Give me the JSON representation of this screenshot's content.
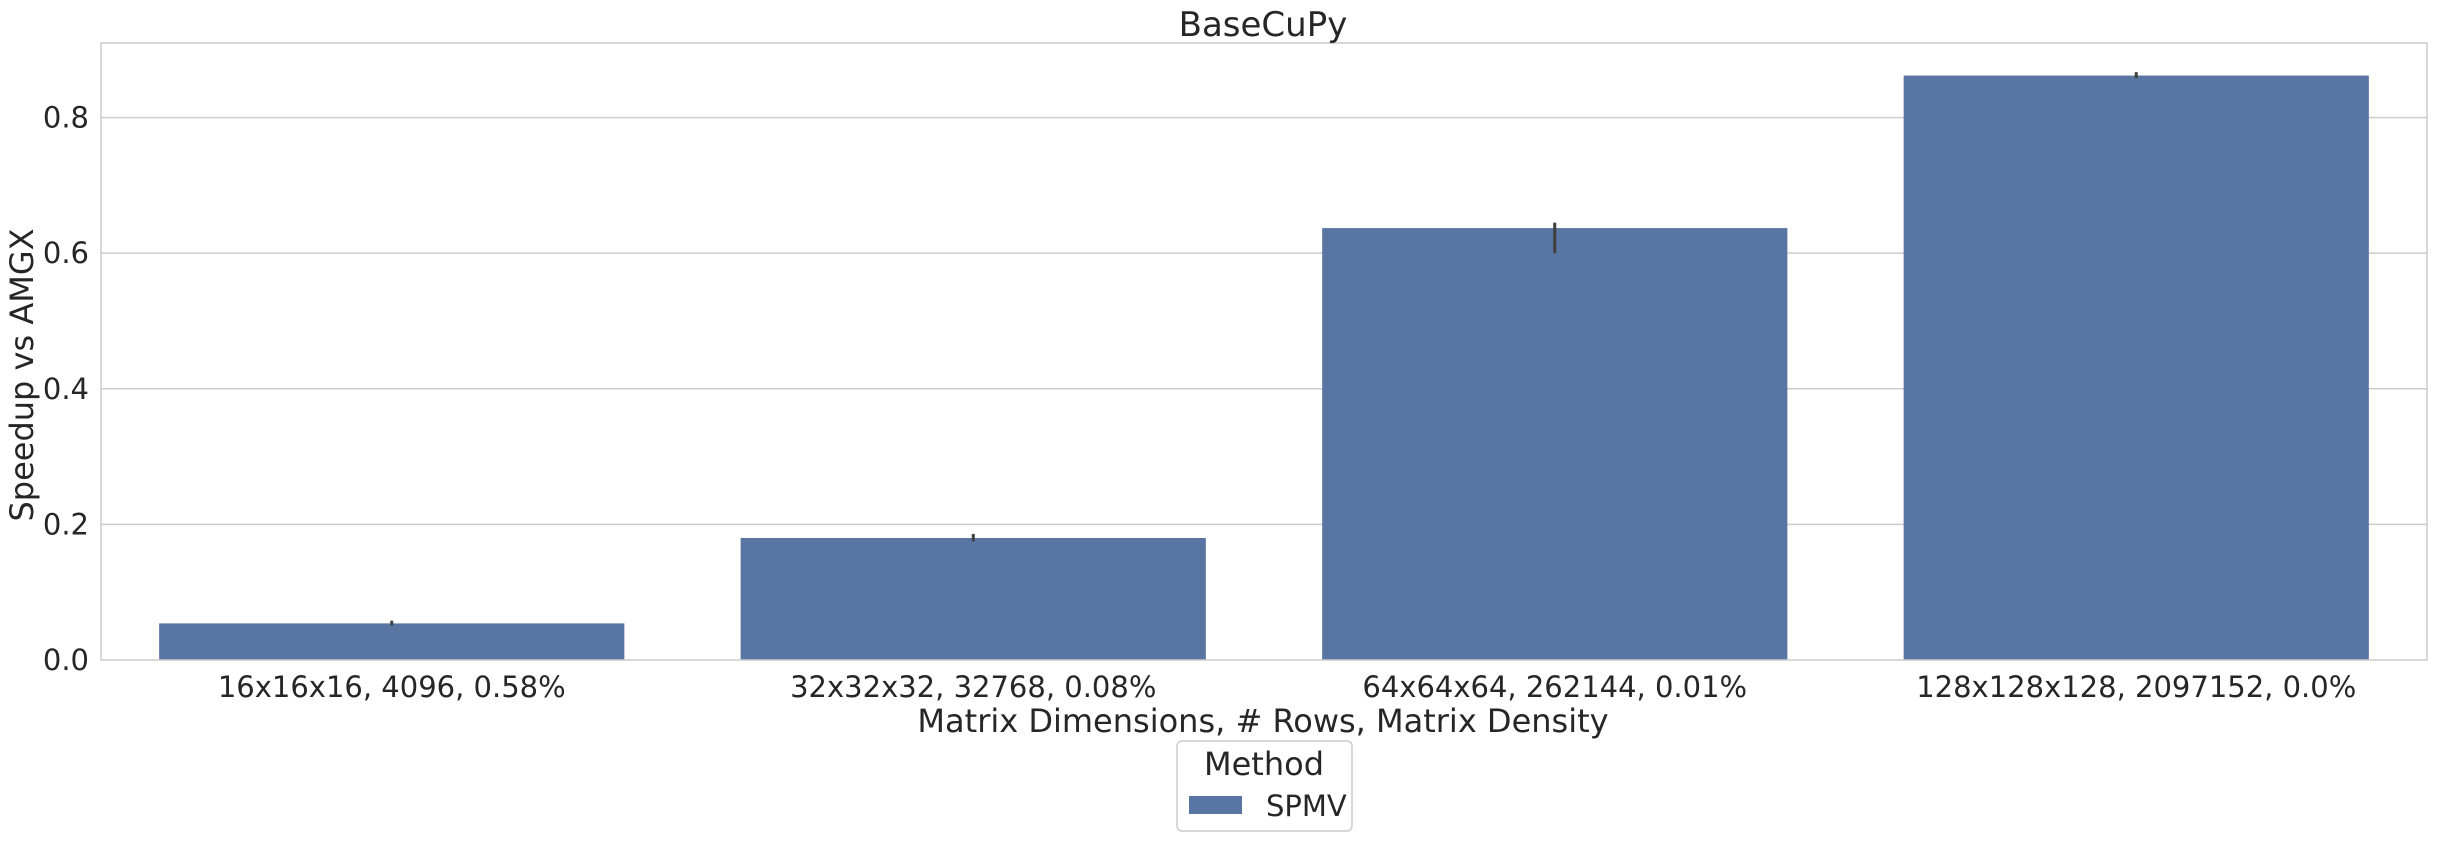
{
  "chart_data": {
    "type": "bar",
    "title": "BaseCuPy",
    "xlabel": "Matrix Dimensions, # Rows, Matrix Density",
    "ylabel": "Speedup vs AMGX",
    "categories": [
      "16x16x16, 4096, 0.58%",
      "32x32x32, 32768, 0.08%",
      "64x64x64, 262144, 0.01%",
      "128x128x128, 2097152, 0.0%"
    ],
    "series": [
      {
        "name": "SPMV",
        "values": [
          0.054,
          0.18,
          0.637,
          0.862
        ],
        "error_low": [
          0.051,
          0.175,
          0.6,
          0.858
        ],
        "error_high": [
          0.058,
          0.186,
          0.645,
          0.867
        ],
        "color": "#5975a4"
      }
    ],
    "ylim": [
      0,
      0.91
    ],
    "yticks": [
      0.0,
      0.2,
      0.4,
      0.6,
      0.8
    ],
    "ytick_labels": [
      "0.0",
      "0.2",
      "0.4",
      "0.6",
      "0.8"
    ],
    "grid": "horizontal",
    "legend": {
      "title": "Method",
      "placement": "below-center"
    },
    "colors": {
      "grid": "#cccccc",
      "frame": "#cccccc",
      "errorbar": "#3f3f3f"
    }
  }
}
